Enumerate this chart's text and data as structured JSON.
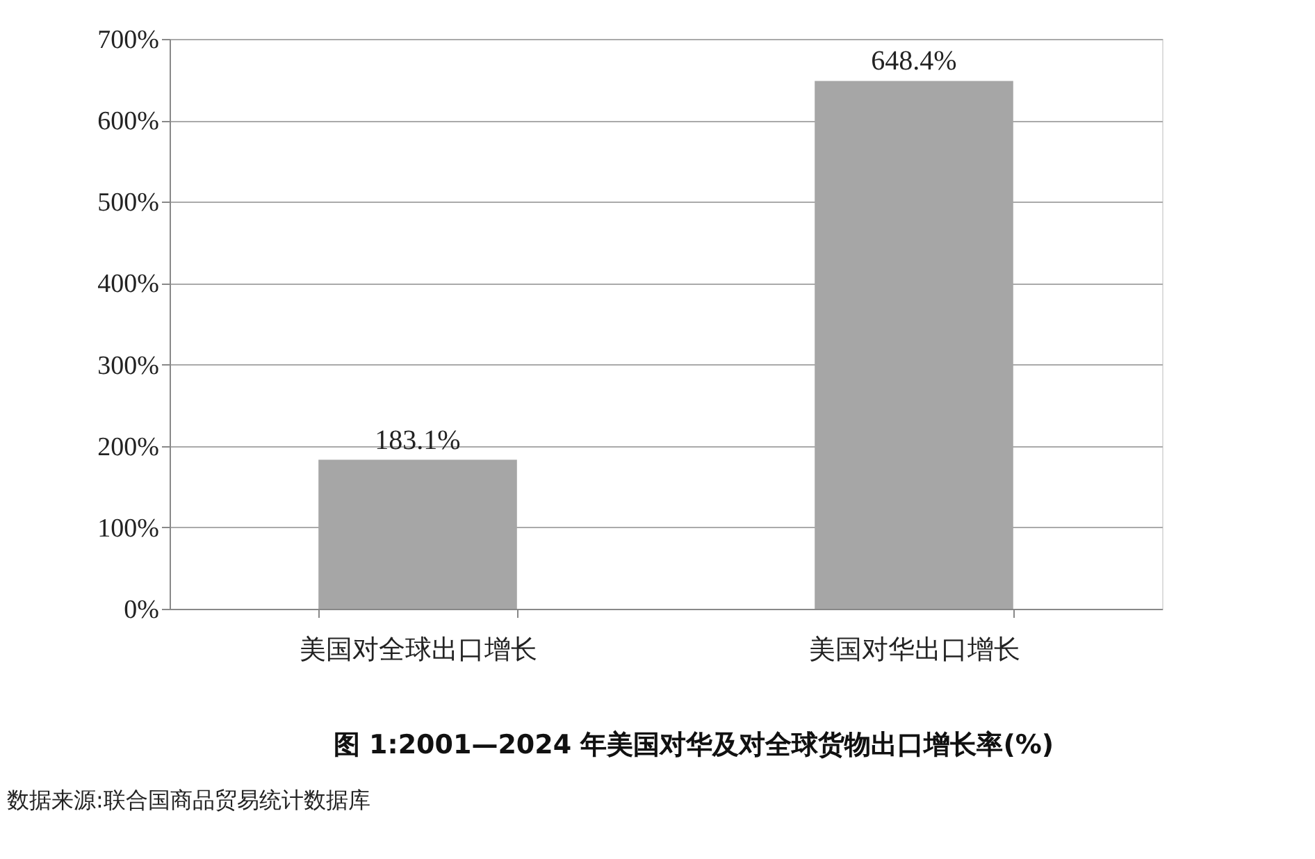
{
  "chart_data": {
    "type": "bar",
    "title": "图 1:2001—2024 年美国对华及对全球货物出口增长率(%)",
    "annotations": [
      "数据来源:联合国商品贸易统计数据库"
    ],
    "categories": [
      "美国对全球出口增长",
      "美国对华出口增长"
    ],
    "values": [
      183.1,
      648.4
    ],
    "value_labels": [
      "183.1%",
      "648.4%"
    ],
    "color": "#a6a6a6",
    "ylim": [
      0,
      700
    ],
    "yticks": [
      {
        "value": 0,
        "label": "0%"
      },
      {
        "value": 100,
        "label": "100%"
      },
      {
        "value": 200,
        "label": "200%"
      },
      {
        "value": 300,
        "label": "300%"
      },
      {
        "value": 400,
        "label": "400%"
      },
      {
        "value": 500,
        "label": "500%"
      },
      {
        "value": 600,
        "label": "600%"
      },
      {
        "value": 700,
        "label": "700%"
      }
    ],
    "grid": "y"
  }
}
